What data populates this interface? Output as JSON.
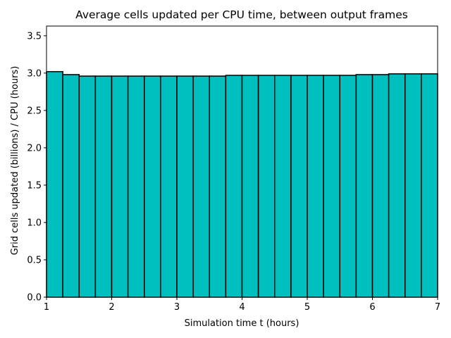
{
  "chart_data": {
    "type": "bar",
    "title": "Average cells updated per CPU time, between output frames",
    "xlabel": "Simulation time t (hours)",
    "ylabel": "Grid cells updated (billions) / CPU (hours)",
    "xlim": [
      1,
      7
    ],
    "ylim": [
      0,
      3.63
    ],
    "xticks": [
      1,
      2,
      3,
      4,
      5,
      6,
      7
    ],
    "xtick_labels": [
      "1",
      "2",
      "3",
      "4",
      "5",
      "6",
      "7"
    ],
    "yticks": [
      0,
      0.5,
      1.0,
      1.5,
      2.0,
      2.5,
      3.0,
      3.5
    ],
    "ytick_labels": [
      "0.0",
      "0.5",
      "1.0",
      "1.5",
      "2.0",
      "2.5",
      "3.0",
      "3.5"
    ],
    "bin_width": 0.25,
    "bin_starts": [
      1.0,
      1.25,
      1.5,
      1.75,
      2.0,
      2.25,
      2.5,
      2.75,
      3.0,
      3.25,
      3.5,
      3.75,
      4.0,
      4.25,
      4.5,
      4.75,
      5.0,
      5.25,
      5.5,
      5.75,
      6.0,
      6.25,
      6.5,
      6.75
    ],
    "values": [
      3.02,
      2.98,
      2.96,
      2.96,
      2.96,
      2.96,
      2.96,
      2.96,
      2.96,
      2.96,
      2.96,
      2.97,
      2.97,
      2.97,
      2.97,
      2.97,
      2.97,
      2.97,
      2.97,
      2.98,
      2.98,
      2.99,
      2.99,
      2.99
    ],
    "bar_color": "#00bfbf",
    "edge_color": "#000000",
    "grid": false,
    "legend": false
  }
}
